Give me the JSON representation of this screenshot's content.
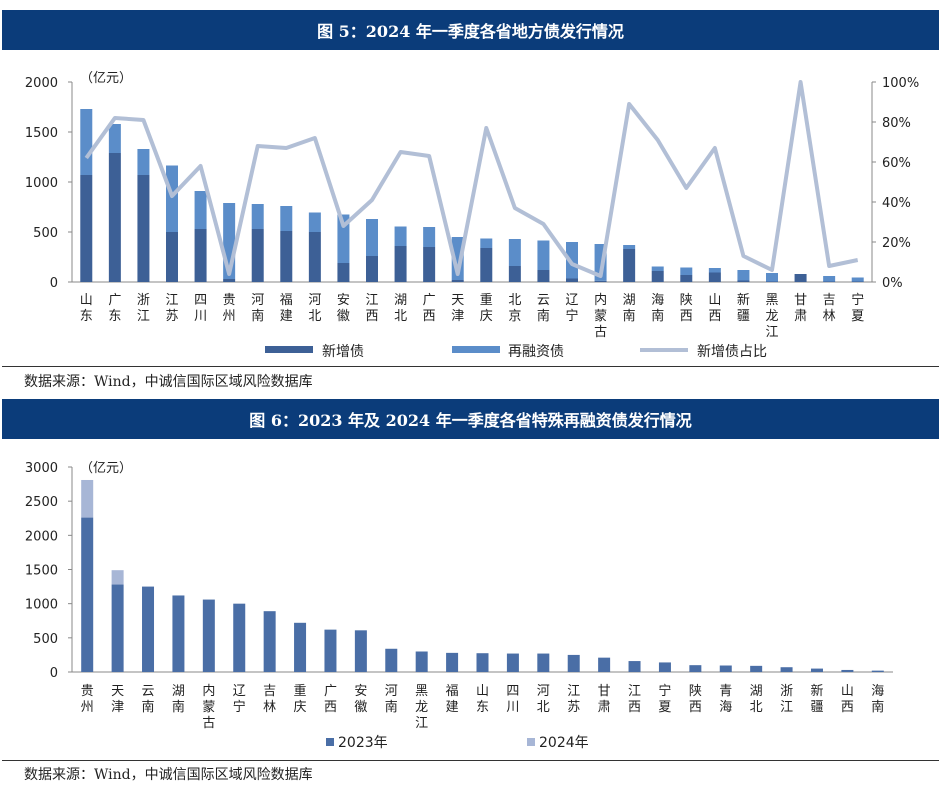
{
  "chart1": {
    "title": "图 5：2024 年一季度各省地方债发行情况",
    "source": "数据来源：Wind，中诚信国际区域风险数据库",
    "chart_data": {
      "type": "bar",
      "stacked": true,
      "unit_label": "（亿元）",
      "categories": [
        "山东",
        "广东",
        "浙江",
        "江苏",
        "四川",
        "贵州",
        "河南",
        "福建",
        "河北",
        "安徽",
        "江西",
        "湖北",
        "广西",
        "天津",
        "重庆",
        "北京",
        "云南",
        "辽宁",
        "内蒙古",
        "湖南",
        "海南",
        "陕西",
        "山西",
        "新疆",
        "黑龙江",
        "甘肃",
        "吉林",
        "宁夏"
      ],
      "series": [
        {
          "name": "新增债",
          "type": "bar",
          "axis": "left",
          "color": "#3d6096",
          "values": [
            1070,
            1290,
            1070,
            500,
            530,
            30,
            530,
            510,
            500,
            190,
            260,
            360,
            350,
            20,
            340,
            160,
            120,
            35,
            12,
            330,
            110,
            70,
            95,
            15,
            5,
            80,
            5,
            5
          ]
        },
        {
          "name": "再融资债",
          "type": "bar",
          "axis": "left",
          "color": "#5b8dc9",
          "values": [
            660,
            290,
            260,
            665,
            380,
            760,
            250,
            250,
            195,
            485,
            370,
            195,
            200,
            430,
            95,
            270,
            295,
            365,
            368,
            40,
            45,
            75,
            45,
            105,
            85,
            0,
            55,
            40
          ]
        },
        {
          "name": "新增债占比",
          "type": "line",
          "axis": "right",
          "color": "#b2bfd6",
          "values": [
            62,
            82,
            81,
            43,
            58,
            4,
            68,
            67,
            72,
            28,
            41,
            65,
            63,
            4,
            77,
            37,
            29,
            9,
            3,
            89,
            71,
            47,
            67,
            13,
            6,
            100,
            8,
            11
          ]
        }
      ],
      "y_left": {
        "min": 0,
        "max": 2000,
        "ticks": [
          0,
          500,
          1000,
          1500,
          2000
        ]
      },
      "y_right": {
        "min": 0,
        "max": 100,
        "ticks": [
          "0%",
          "20%",
          "40%",
          "60%",
          "80%",
          "100%"
        ]
      },
      "legend_position": "bottom",
      "grid": false
    }
  },
  "chart2": {
    "title": "图 6：2023 年及 2024 年一季度各省特殊再融资债发行情况",
    "source": "数据来源：Wind，中诚信国际区域风险数据库",
    "chart_data": {
      "type": "bar",
      "stacked": true,
      "unit_label": "（亿元）",
      "categories": [
        "贵州",
        "天津",
        "云南",
        "湖南",
        "内蒙古",
        "辽宁",
        "吉林",
        "重庆",
        "广西",
        "安徽",
        "河南",
        "黑龙江",
        "福建",
        "山东",
        "四川",
        "河北",
        "江苏",
        "甘肃",
        "江西",
        "宁夏",
        "陕西",
        "青海",
        "湖北",
        "浙江",
        "新疆",
        "山西",
        "海南"
      ],
      "series": [
        {
          "name": "2023年",
          "color": "#4a6ea6",
          "values": [
            2260,
            1280,
            1250,
            1120,
            1060,
            1000,
            890,
            720,
            620,
            610,
            340,
            300,
            280,
            275,
            270,
            270,
            250,
            210,
            160,
            140,
            100,
            95,
            90,
            70,
            50,
            30,
            20
          ]
        },
        {
          "name": "2024年",
          "color": "#a7b6d6",
          "values": [
            550,
            210,
            0,
            0,
            0,
            0,
            0,
            0,
            0,
            0,
            0,
            0,
            0,
            0,
            0,
            0,
            0,
            0,
            0,
            0,
            0,
            0,
            0,
            0,
            0,
            0,
            0
          ]
        }
      ],
      "y": {
        "min": 0,
        "max": 3000,
        "ticks": [
          0,
          500,
          1000,
          1500,
          2000,
          2500,
          3000
        ]
      },
      "legend_position": "bottom",
      "grid": false
    }
  }
}
